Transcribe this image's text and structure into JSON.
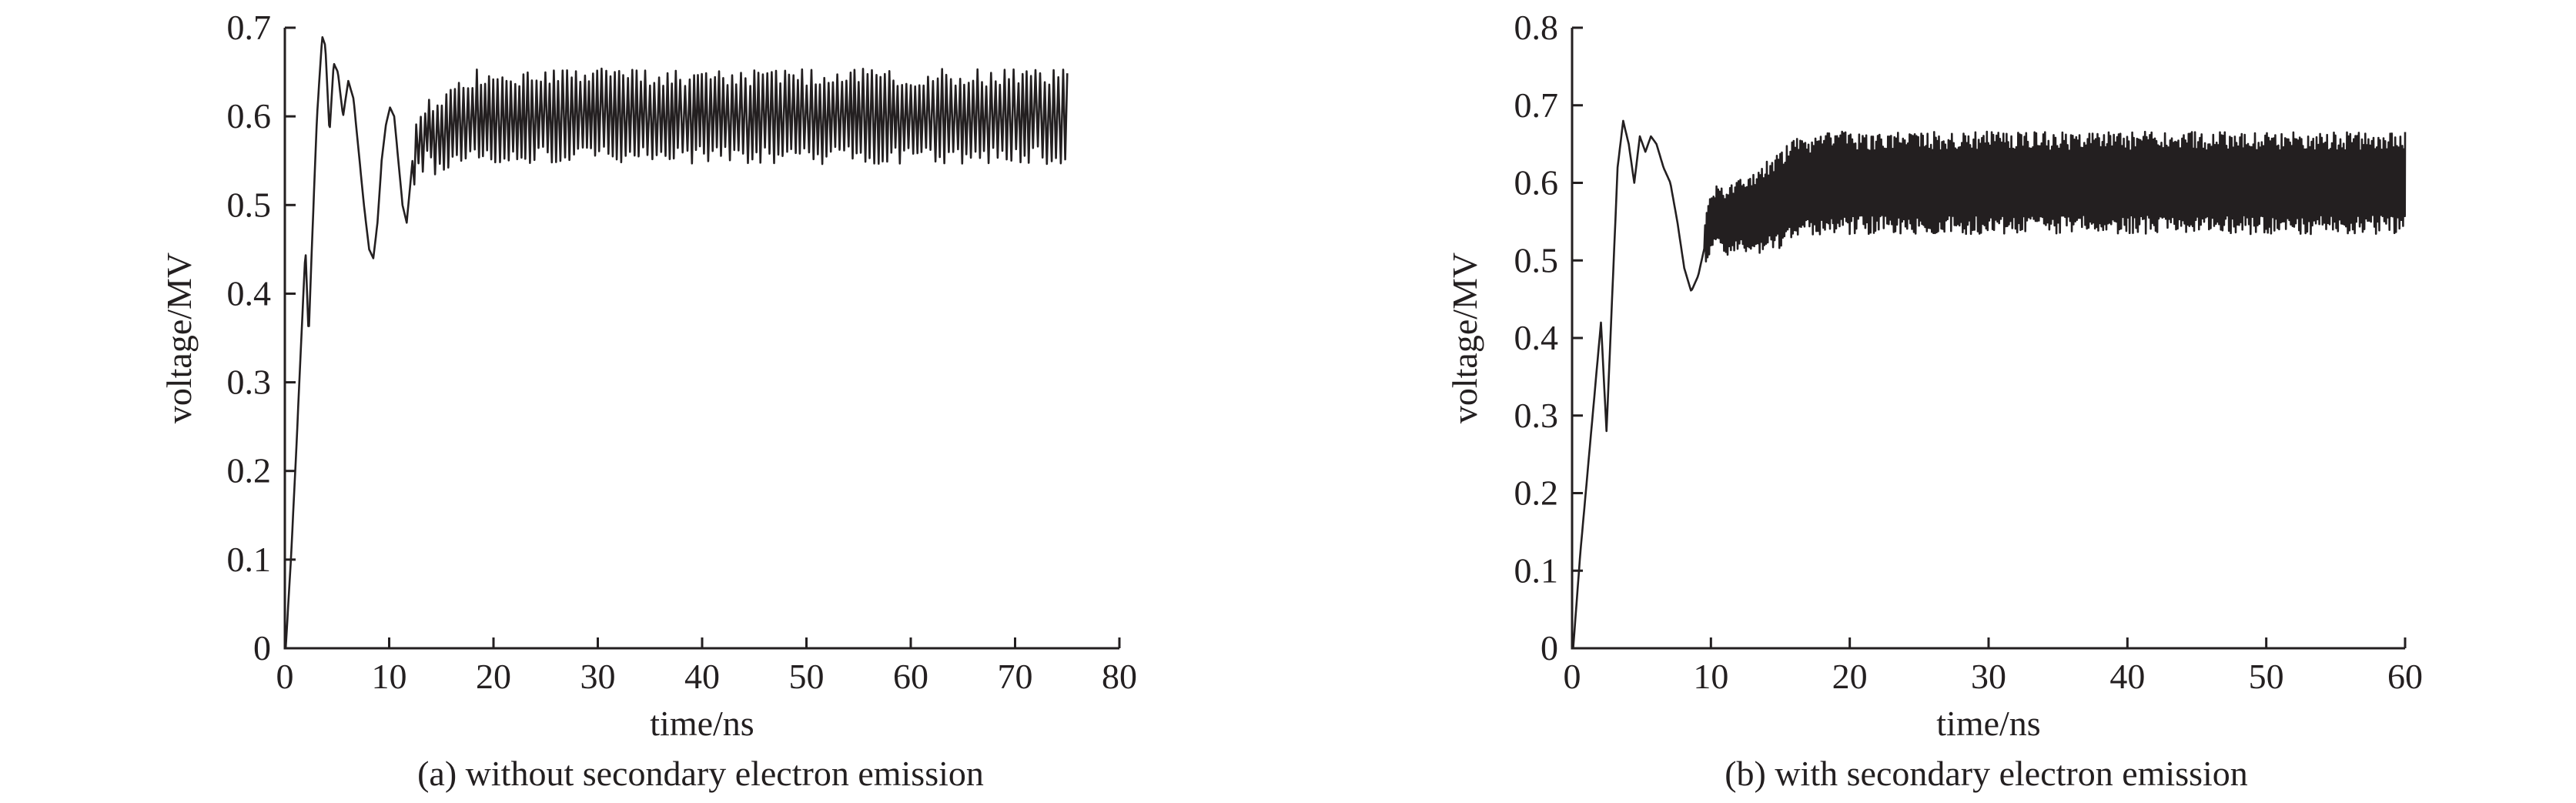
{
  "chart_data": [
    {
      "type": "line",
      "caption": "(a) without  secondary electron emission",
      "xlabel": "time/ns",
      "ylabel": "voltage/MV",
      "xlim": [
        0,
        80
      ],
      "ylim": [
        0,
        0.7
      ],
      "xticks": [
        0,
        10,
        20,
        30,
        40,
        50,
        60,
        70,
        80
      ],
      "yticks": [
        0,
        0.1,
        0.2,
        0.3,
        0.4,
        0.5,
        0.6,
        0.7
      ],
      "grid": false,
      "series": [
        {
          "color": "#231f20",
          "x": [
            0,
            0.5,
            1.0,
            1.5,
            1.9,
            2.2,
            2.5,
            3.0,
            3.5,
            3.8,
            4.2,
            4.6,
            5.0,
            5.5,
            6.0,
            6.5,
            7.0,
            7.5,
            8.0,
            8.4,
            8.8,
            9.2,
            9.6,
            10.0,
            10.4,
            10.8,
            11.2,
            11.6,
            12.0,
            12.5,
            13.0,
            13.5,
            14.0,
            15.0,
            16.0,
            17.0,
            18.0,
            19.0,
            20.0,
            22.0,
            25.0,
            30.0,
            35.0,
            40.0,
            45.0,
            50.0,
            55.0,
            60.0,
            65.0,
            70.0,
            75.0
          ],
          "values": [
            0,
            0.1,
            0.22,
            0.35,
            0.45,
            0.35,
            0.45,
            0.6,
            0.69,
            0.68,
            0.58,
            0.66,
            0.65,
            0.6,
            0.64,
            0.62,
            0.56,
            0.5,
            0.45,
            0.44,
            0.48,
            0.55,
            0.59,
            0.61,
            0.6,
            0.55,
            0.5,
            0.48,
            0.53,
            0.58,
            0.56,
            0.6,
            0.57,
            0.58,
            0.59,
            0.59,
            0.6,
            0.6,
            0.6,
            0.6,
            0.6,
            0.6,
            0.6,
            0.6,
            0.6,
            0.6,
            0.6,
            0.6,
            0.6,
            0.6,
            0.6
          ],
          "oscillation": {
            "from": 12,
            "to": 75,
            "amplitude": 0.045,
            "period": 0.42
          }
        }
      ]
    },
    {
      "type": "line",
      "caption": "(b) with secondary electron emission",
      "xlabel": "time/ns",
      "ylabel": "voltage/MV",
      "xlim": [
        0,
        60
      ],
      "ylim": [
        0,
        0.8
      ],
      "xticks": [
        0,
        10,
        20,
        30,
        40,
        50,
        60
      ],
      "yticks": [
        0,
        0.1,
        0.2,
        0.3,
        0.4,
        0.5,
        0.6,
        0.7,
        0.8
      ],
      "grid": false,
      "series": [
        {
          "color": "#231f20",
          "x": [
            0,
            0.5,
            1.0,
            1.5,
            2.0,
            2.4,
            2.8,
            3.2,
            3.6,
            4.0,
            4.4,
            4.8,
            5.2,
            5.6,
            6.0,
            6.5,
            7.0,
            7.5,
            8.0,
            8.5,
            9.0,
            9.5,
            10.0,
            10.5,
            11.0,
            12.0,
            13.0,
            14.0,
            15.0,
            16.0,
            18.0,
            20.0,
            25.0,
            30.0,
            35.0,
            40.0,
            45.0,
            50.0,
            55.0,
            60.0
          ],
          "values": [
            0,
            0.12,
            0.22,
            0.32,
            0.42,
            0.28,
            0.45,
            0.62,
            0.68,
            0.65,
            0.6,
            0.66,
            0.64,
            0.66,
            0.65,
            0.62,
            0.6,
            0.55,
            0.49,
            0.46,
            0.48,
            0.52,
            0.55,
            0.56,
            0.55,
            0.56,
            0.56,
            0.57,
            0.58,
            0.59,
            0.6,
            0.6,
            0.6,
            0.6,
            0.6,
            0.6,
            0.6,
            0.6,
            0.6,
            0.6
          ],
          "oscillation": {
            "from": 9.5,
            "to": 60,
            "amplitude": 0.055,
            "period": 0.12
          }
        }
      ]
    }
  ]
}
